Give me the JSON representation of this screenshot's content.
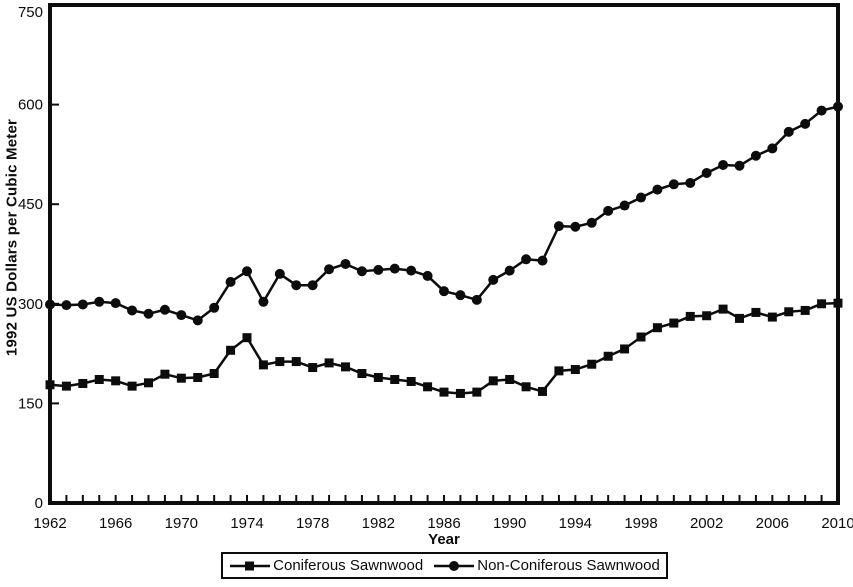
{
  "figure": {
    "background": "#ffffff",
    "ink_color": "#0c0c0c"
  },
  "chart_data": {
    "type": "line",
    "title": "",
    "xlabel": "Year",
    "ylabel": "1992 US Dollars per Cubic Meter",
    "xlim": [
      1962,
      2010
    ],
    "ylim": [
      0,
      750
    ],
    "grid": false,
    "legend_position": "bottom",
    "y_ticks": [
      0,
      150,
      300,
      450,
      600,
      750
    ],
    "x_tick_labels": [
      "1962",
      "1966",
      "1970",
      "1974",
      "1978",
      "1982",
      "1986",
      "1990",
      "1994",
      "1998",
      "2002",
      "2006",
      "2010"
    ],
    "x_minor_tick_interval": 1,
    "x": [
      1962,
      1963,
      1964,
      1965,
      1966,
      1967,
      1968,
      1969,
      1970,
      1971,
      1972,
      1973,
      1974,
      1975,
      1976,
      1977,
      1978,
      1979,
      1980,
      1981,
      1982,
      1983,
      1984,
      1985,
      1986,
      1987,
      1988,
      1989,
      1990,
      1991,
      1992,
      1993,
      1994,
      1995,
      1996,
      1997,
      1998,
      1999,
      2000,
      2001,
      2002,
      2003,
      2004,
      2005,
      2006,
      2007,
      2008,
      2009,
      2010
    ],
    "series": [
      {
        "name": "Coniferous Sawnwood",
        "marker": "square",
        "color": "#0c0c0c",
        "values": [
          178,
          176,
          180,
          186,
          184,
          176,
          181,
          194,
          188,
          189,
          195,
          230,
          249,
          208,
          213,
          213,
          204,
          211,
          205,
          195,
          189,
          186,
          183,
          175,
          167,
          165,
          167,
          184,
          186,
          175,
          168,
          199,
          201,
          209,
          221,
          232,
          250,
          264,
          271,
          281,
          282,
          292,
          278,
          287,
          280,
          288,
          290,
          300,
          301
        ]
      },
      {
        "name": "Non-Coniferous Sawnwood",
        "marker": "circle",
        "color": "#0c0c0c",
        "values": [
          299,
          298,
          299,
          303,
          301,
          290,
          285,
          291,
          283,
          275,
          294,
          333,
          349,
          303,
          345,
          328,
          328,
          352,
          360,
          349,
          351,
          353,
          350,
          342,
          319,
          313,
          306,
          336,
          350,
          367,
          365,
          417,
          416,
          422,
          440,
          448,
          460,
          472,
          480,
          482,
          497,
          509,
          508,
          523,
          534,
          559,
          571,
          591,
          597
        ]
      }
    ]
  }
}
